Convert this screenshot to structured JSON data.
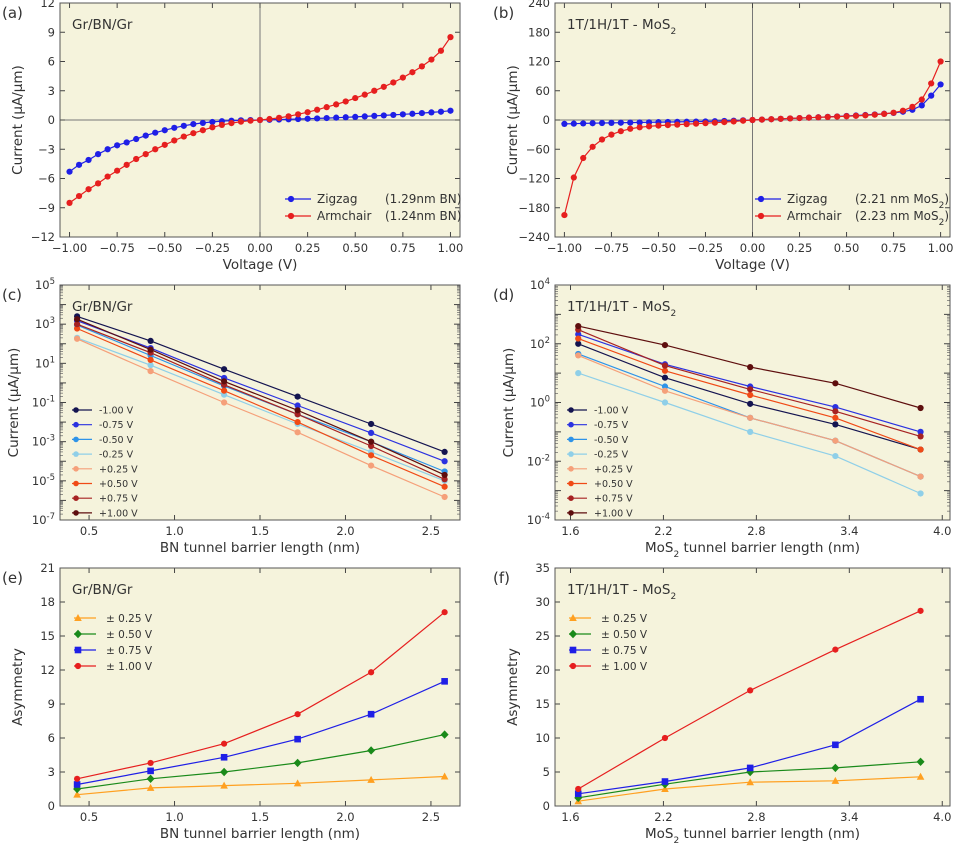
{
  "panel_labels": [
    "(a)",
    "(b)",
    "(c)",
    "(d)",
    "(e)",
    "(f)"
  ],
  "chart_data": [
    {
      "id": "a",
      "type": "line",
      "title": "Gr/BN/Gr",
      "xlabel": "Voltage (V)",
      "ylabel": "Current (μA/μm)",
      "xlim": [
        -1.05,
        1.05
      ],
      "ylim": [
        -12,
        12
      ],
      "xticks": [
        -1.0,
        -0.75,
        -0.5,
        -0.25,
        0.0,
        0.25,
        0.5,
        0.75,
        1.0
      ],
      "xtick_labels": [
        "−1.00",
        "−0.75",
        "−0.50",
        "−0.25",
        "0.00",
        "0.25",
        "0.50",
        "0.75",
        "1.00"
      ],
      "yticks": [
        -12,
        -9,
        -6,
        -3,
        0,
        3,
        6,
        9,
        12
      ],
      "ytick_labels": [
        "−12",
        "−9",
        "−6",
        "−3",
        "0",
        "3",
        "6",
        "9",
        "12"
      ],
      "zero_lines": true,
      "legend_loc": "bottom-right",
      "series": [
        {
          "name": "Zigzag",
          "note": "(1.29nm BN)",
          "color": "#1f1fe6",
          "marker": "circle",
          "x": [
            -1.0,
            -0.95,
            -0.9,
            -0.85,
            -0.8,
            -0.75,
            -0.7,
            -0.65,
            -0.6,
            -0.55,
            -0.5,
            -0.45,
            -0.4,
            -0.35,
            -0.3,
            -0.25,
            -0.2,
            -0.15,
            -0.1,
            -0.05,
            0.0,
            0.05,
            0.1,
            0.15,
            0.2,
            0.25,
            0.3,
            0.35,
            0.4,
            0.45,
            0.5,
            0.55,
            0.6,
            0.65,
            0.7,
            0.75,
            0.8,
            0.85,
            0.9,
            0.95,
            1.0
          ],
          "y": [
            -5.3,
            -4.6,
            -4.1,
            -3.5,
            -3.0,
            -2.6,
            -2.3,
            -1.95,
            -1.6,
            -1.3,
            -1.05,
            -0.8,
            -0.6,
            -0.42,
            -0.3,
            -0.2,
            -0.12,
            -0.07,
            -0.03,
            -0.01,
            0.0,
            0.02,
            0.05,
            0.07,
            0.1,
            0.13,
            0.16,
            0.2,
            0.24,
            0.28,
            0.32,
            0.37,
            0.42,
            0.47,
            0.52,
            0.58,
            0.64,
            0.71,
            0.78,
            0.85,
            0.95
          ]
        },
        {
          "name": "Armchair",
          "note": "(1.24nm BN)",
          "color": "#e61f1f",
          "marker": "circle",
          "x": [
            -1.0,
            -0.95,
            -0.9,
            -0.85,
            -0.8,
            -0.75,
            -0.7,
            -0.65,
            -0.6,
            -0.55,
            -0.5,
            -0.45,
            -0.4,
            -0.35,
            -0.3,
            -0.25,
            -0.2,
            -0.15,
            -0.1,
            -0.05,
            0.0,
            0.05,
            0.1,
            0.15,
            0.2,
            0.25,
            0.3,
            0.35,
            0.4,
            0.45,
            0.5,
            0.55,
            0.6,
            0.65,
            0.7,
            0.75,
            0.8,
            0.85,
            0.9,
            0.95,
            1.0
          ],
          "y": [
            -8.5,
            -7.8,
            -7.1,
            -6.5,
            -5.8,
            -5.2,
            -4.6,
            -4.0,
            -3.5,
            -3.0,
            -2.55,
            -2.1,
            -1.7,
            -1.35,
            -1.05,
            -0.75,
            -0.5,
            -0.32,
            -0.17,
            -0.07,
            0.0,
            0.1,
            0.22,
            0.38,
            0.58,
            0.8,
            1.05,
            1.32,
            1.6,
            1.9,
            2.25,
            2.6,
            3.0,
            3.4,
            3.85,
            4.35,
            4.9,
            5.5,
            6.2,
            7.1,
            8.5
          ]
        }
      ]
    },
    {
      "id": "b",
      "type": "line",
      "title": "1T/1H/1T - MoS",
      "xlabel": "Voltage (V)",
      "ylabel": "Current (μA/μm)",
      "xlim": [
        -1.05,
        1.05
      ],
      "ylim": [
        -240,
        240
      ],
      "xticks": [
        -1.0,
        -0.75,
        -0.5,
        -0.25,
        0.0,
        0.25,
        0.5,
        0.75,
        1.0
      ],
      "xtick_labels": [
        "−1.00",
        "−0.75",
        "−0.50",
        "−0.25",
        "0.00",
        "0.25",
        "0.50",
        "0.75",
        "1.00"
      ],
      "yticks": [
        -240,
        -180,
        -120,
        -60,
        0,
        60,
        120,
        180,
        240
      ],
      "ytick_labels": [
        "−240",
        "−180",
        "−120",
        "−60",
        "0",
        "60",
        "120",
        "180",
        "240"
      ],
      "zero_lines": true,
      "legend_loc": "bottom-right",
      "series": [
        {
          "name": "Zigzag",
          "note": "(2.21 nm MoS",
          "color": "#1f1fe6",
          "marker": "circle",
          "x": [
            -1.0,
            -0.95,
            -0.9,
            -0.85,
            -0.8,
            -0.75,
            -0.7,
            -0.65,
            -0.6,
            -0.55,
            -0.5,
            -0.45,
            -0.4,
            -0.35,
            -0.3,
            -0.25,
            -0.2,
            -0.15,
            -0.1,
            -0.05,
            0.0,
            0.05,
            0.1,
            0.15,
            0.2,
            0.25,
            0.3,
            0.35,
            0.4,
            0.45,
            0.5,
            0.55,
            0.6,
            0.65,
            0.7,
            0.75,
            0.8,
            0.85,
            0.9,
            0.95,
            1.0
          ],
          "y": [
            -8,
            -7.5,
            -7,
            -6.6,
            -6.2,
            -5.9,
            -5.6,
            -5.3,
            -5,
            -4.7,
            -4.4,
            -4.1,
            -3.8,
            -3.5,
            -3.2,
            -2.9,
            -2.5,
            -2,
            -1.4,
            -0.7,
            0,
            0.8,
            1.6,
            2.4,
            3.2,
            4,
            4.8,
            5.6,
            6.5,
            7.3,
            8.2,
            9.2,
            10.2,
            11.4,
            12.8,
            14.5,
            17,
            21,
            30,
            50,
            73
          ]
        },
        {
          "name": "Armchair",
          "note": "(2.23 nm MoS",
          "color": "#e61f1f",
          "marker": "circle",
          "x": [
            -1.0,
            -0.95,
            -0.9,
            -0.85,
            -0.8,
            -0.75,
            -0.7,
            -0.65,
            -0.6,
            -0.55,
            -0.5,
            -0.45,
            -0.4,
            -0.35,
            -0.3,
            -0.25,
            -0.2,
            -0.15,
            -0.1,
            -0.05,
            0.0,
            0.05,
            0.1,
            0.15,
            0.2,
            0.25,
            0.3,
            0.35,
            0.4,
            0.45,
            0.5,
            0.55,
            0.6,
            0.65,
            0.7,
            0.75,
            0.8,
            0.85,
            0.9,
            0.95,
            1.0
          ],
          "y": [
            -195,
            -118,
            -78,
            -55,
            -40,
            -30,
            -23,
            -18,
            -15,
            -13,
            -11.5,
            -10.5,
            -9.5,
            -8.5,
            -7.5,
            -6.5,
            -5.5,
            -4.3,
            -3,
            -1.5,
            0,
            0.8,
            1.6,
            2.4,
            3.2,
            4,
            4.8,
            5.5,
            6.2,
            7,
            7.7,
            8.5,
            9.5,
            10.8,
            12.5,
            15,
            19,
            27,
            42,
            75,
            120
          ]
        }
      ]
    },
    {
      "id": "c",
      "type": "line",
      "title": "Gr/BN/Gr",
      "yscale": "log",
      "xlabel": "BN tunnel barrier length (nm)",
      "ylabel": "Current (μA/μm)",
      "xlim": [
        0.33,
        2.67
      ],
      "ylim_exp": [
        -7,
        5
      ],
      "xticks": [
        0.5,
        1.0,
        1.5,
        2.0,
        2.5
      ],
      "xtick_labels": [
        "0.5",
        "1.0",
        "1.5",
        "2.0",
        "2.5"
      ],
      "ytick_exps": [
        -7,
        -5,
        -3,
        -1,
        1,
        3,
        5
      ],
      "legend_loc": "middle-left",
      "x": [
        0.43,
        0.86,
        1.29,
        1.72,
        2.15,
        2.58
      ],
      "series": [
        {
          "name": "-1.00 V",
          "color": "#141450",
          "y": [
            2500,
            140,
            5,
            0.2,
            0.008,
            0.0003
          ]
        },
        {
          "name": "-0.75 V",
          "color": "#2b32e0",
          "y": [
            1500,
            60,
            1.8,
            0.07,
            0.0028,
            0.0001
          ]
        },
        {
          "name": "-0.50 V",
          "color": "#2e93e8",
          "y": [
            900,
            25,
            0.7,
            0.025,
            0.001,
            3e-05
          ]
        },
        {
          "name": "-0.25 V",
          "color": "#8fcfe8",
          "y": [
            200,
            8,
            0.25,
            0.008,
            0.0003,
            1e-05
          ]
        },
        {
          "name": "+0.25 V",
          "color": "#f5a07a",
          "y": [
            180,
            4,
            0.1,
            0.003,
            6e-05,
            1.5e-06
          ]
        },
        {
          "name": "+0.50 V",
          "color": "#f04a16",
          "y": [
            600,
            15,
            0.4,
            0.01,
            0.0002,
            5e-06
          ]
        },
        {
          "name": "+0.75 V",
          "color": "#a62222",
          "y": [
            1000,
            35,
            0.8,
            0.025,
            0.0006,
            1.2e-05
          ]
        },
        {
          "name": "+1.00 V",
          "color": "#5e0e0e",
          "y": [
            1800,
            50,
            1.2,
            0.04,
            0.001,
            2e-05
          ]
        }
      ]
    },
    {
      "id": "d",
      "type": "line",
      "title": "1T/1H/1T - MoS",
      "yscale": "log",
      "xlabel": "MoS tunnel barrier length (nm)",
      "ylabel": "Current (μA/μm)",
      "xlim": [
        1.5,
        4.05
      ],
      "ylim_exp": [
        -4,
        4
      ],
      "xticks": [
        1.6,
        2.2,
        2.8,
        3.4,
        4.0
      ],
      "xtick_labels": [
        "1.6",
        "2.2",
        "2.8",
        "3.4",
        "4.0"
      ],
      "ytick_exps": [
        -4,
        -2,
        0,
        2,
        4
      ],
      "legend_loc": "middle-left",
      "x": [
        1.65,
        2.21,
        2.76,
        3.31,
        3.86
      ],
      "series": [
        {
          "name": "-1.00 V",
          "color": "#141450",
          "y": [
            100,
            7,
            0.9,
            0.18,
            0.025
          ]
        },
        {
          "name": "-0.75 V",
          "color": "#2b32e0",
          "y": [
            210,
            20,
            3.5,
            0.7,
            0.1
          ]
        },
        {
          "name": "-0.50 V",
          "color": "#2e93e8",
          "y": [
            45,
            3.5,
            0.3,
            0.05,
            0.003
          ]
        },
        {
          "name": "-0.25 V",
          "color": "#8fcfe8",
          "y": [
            10,
            1.0,
            0.1,
            0.015,
            0.0008
          ]
        },
        {
          "name": "+0.25 V",
          "color": "#f5a07a",
          "y": [
            40,
            2.5,
            0.3,
            0.05,
            0.003
          ]
        },
        {
          "name": "+0.50 V",
          "color": "#f04a16",
          "y": [
            150,
            12,
            1.8,
            0.3,
            0.025
          ]
        },
        {
          "name": "+0.75 V",
          "color": "#a62222",
          "y": [
            300,
            18,
            2.8,
            0.5,
            0.07
          ]
        },
        {
          "name": "+1.00 V",
          "color": "#5e0e0e",
          "y": [
            400,
            90,
            16,
            4.5,
            0.65
          ]
        }
      ]
    },
    {
      "id": "e",
      "type": "line",
      "title": "Gr/BN/Gr",
      "xlabel": "BN tunnel barrier length (nm)",
      "ylabel": "Asymmetry",
      "xlim": [
        0.33,
        2.67
      ],
      "ylim": [
        0,
        21
      ],
      "xticks": [
        0.5,
        1.0,
        1.5,
        2.0,
        2.5
      ],
      "xtick_labels": [
        "0.5",
        "1.0",
        "1.5",
        "2.0",
        "2.5"
      ],
      "yticks": [
        0,
        3,
        6,
        9,
        12,
        15,
        18,
        21
      ],
      "ytick_labels": [
        "0",
        "3",
        "6",
        "9",
        "12",
        "15",
        "18",
        "21"
      ],
      "legend_loc": "top-left",
      "x": [
        0.43,
        0.86,
        1.29,
        1.72,
        2.15,
        2.58
      ],
      "series": [
        {
          "name": "± 0.25 V",
          "color": "#ffa020",
          "marker": "triangle",
          "y": [
            1.0,
            1.6,
            1.8,
            2.0,
            2.3,
            2.6
          ]
        },
        {
          "name": "± 0.50 V",
          "color": "#1a8a1a",
          "marker": "diamond",
          "y": [
            1.5,
            2.4,
            3.0,
            3.8,
            4.9,
            6.3
          ]
        },
        {
          "name": "± 0.75 V",
          "color": "#1f1fe6",
          "marker": "square",
          "y": [
            1.9,
            3.1,
            4.3,
            5.9,
            8.1,
            11.0
          ]
        },
        {
          "name": "± 1.00 V",
          "color": "#e61f1f",
          "marker": "circle",
          "y": [
            2.4,
            3.8,
            5.5,
            8.1,
            11.8,
            17.1
          ]
        }
      ]
    },
    {
      "id": "f",
      "type": "line",
      "title": "1T/1H/1T - MoS",
      "xlabel": "MoS tunnel barrier length (nm)",
      "ylabel": "Asymmetry",
      "xlim": [
        1.5,
        4.05
      ],
      "ylim": [
        0,
        35
      ],
      "xticks": [
        1.6,
        2.2,
        2.8,
        3.4,
        4.0
      ],
      "xtick_labels": [
        "1.6",
        "2.2",
        "2.8",
        "3.4",
        "4.0"
      ],
      "yticks": [
        0,
        5,
        10,
        15,
        20,
        25,
        30,
        35
      ],
      "ytick_labels": [
        "0",
        "5",
        "10",
        "15",
        "20",
        "25",
        "30",
        "35"
      ],
      "legend_loc": "top-left",
      "x": [
        1.65,
        2.21,
        2.76,
        3.31,
        3.86
      ],
      "series": [
        {
          "name": "± 0.25 V",
          "color": "#ffa020",
          "marker": "triangle",
          "y": [
            0.7,
            2.5,
            3.5,
            3.7,
            4.3
          ]
        },
        {
          "name": "± 0.50 V",
          "color": "#1a8a1a",
          "marker": "diamond",
          "y": [
            1.2,
            3.2,
            5.0,
            5.6,
            6.5
          ]
        },
        {
          "name": "± 0.75 V",
          "color": "#1f1fe6",
          "marker": "square",
          "y": [
            1.8,
            3.6,
            5.6,
            9.0,
            15.7
          ]
        },
        {
          "name": "± 1.00 V",
          "color": "#e61f1f",
          "marker": "circle",
          "y": [
            2.5,
            10.0,
            17.0,
            23.0,
            28.7
          ]
        }
      ]
    }
  ]
}
